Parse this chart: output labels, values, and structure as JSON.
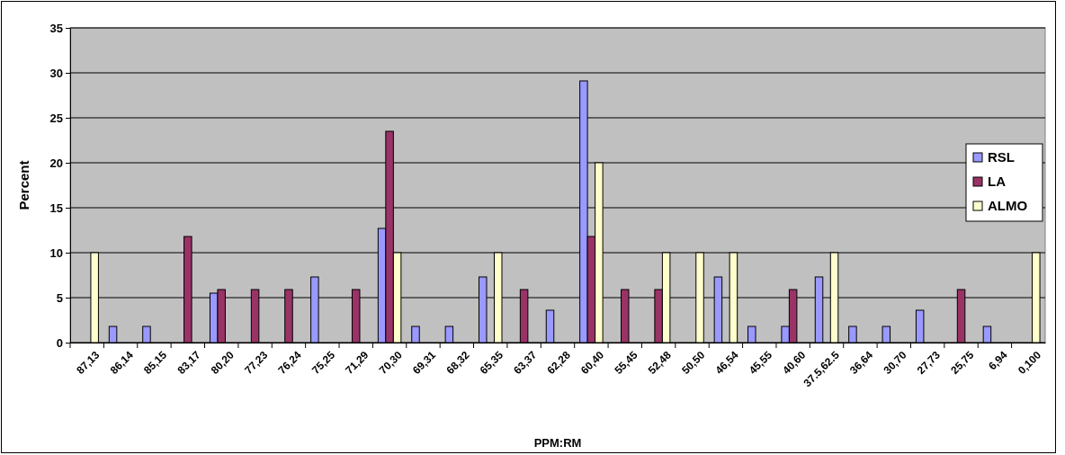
{
  "chart_data": {
    "type": "bar",
    "xlabel": "PPM:RM",
    "ylabel": "Percent",
    "categories": [
      "87,13",
      "86,14",
      "85,15",
      "83,17",
      "80,20",
      "77,23",
      "76,24",
      "75,25",
      "71,29",
      "70,30",
      "69,31",
      "68,32",
      "65,35",
      "63,37",
      "62,28",
      "60,40",
      "55,45",
      "52,48",
      "50,50",
      "46,54",
      "45,55",
      "40,60",
      "37.5,62.5",
      "36,64",
      "30,70",
      "27,73",
      "25,75",
      "6,94",
      "0,100"
    ],
    "series": [
      {
        "name": "RSL",
        "color": "#9999ff",
        "values": [
          0,
          1.8,
          1.8,
          0,
          5.5,
          0,
          0,
          7.3,
          0,
          12.7,
          1.8,
          1.8,
          7.3,
          0,
          3.6,
          29.1,
          0,
          0,
          0,
          7.3,
          1.8,
          1.8,
          7.3,
          1.8,
          1.8,
          3.6,
          0,
          1.8,
          0
        ]
      },
      {
        "name": "LA",
        "color": "#993366",
        "values": [
          0,
          0,
          0,
          11.8,
          5.9,
          5.9,
          5.9,
          0,
          5.9,
          23.5,
          0,
          0,
          0,
          5.9,
          0,
          11.8,
          5.9,
          5.9,
          0,
          0,
          0,
          5.9,
          0,
          0,
          0,
          0,
          5.9,
          0,
          0
        ]
      },
      {
        "name": "ALMO",
        "color": "#ffffcc",
        "values": [
          10,
          0,
          0,
          0,
          0,
          0,
          0,
          0,
          0,
          10,
          0,
          0,
          10,
          0,
          0,
          20,
          0,
          10,
          10,
          10,
          0,
          0,
          10,
          0,
          0,
          0,
          0,
          0,
          10
        ]
      }
    ],
    "ylim": [
      0,
      35
    ],
    "yticks": [
      0,
      5,
      10,
      15,
      20,
      25,
      30,
      35
    ],
    "grid": "y",
    "legend": "right"
  }
}
